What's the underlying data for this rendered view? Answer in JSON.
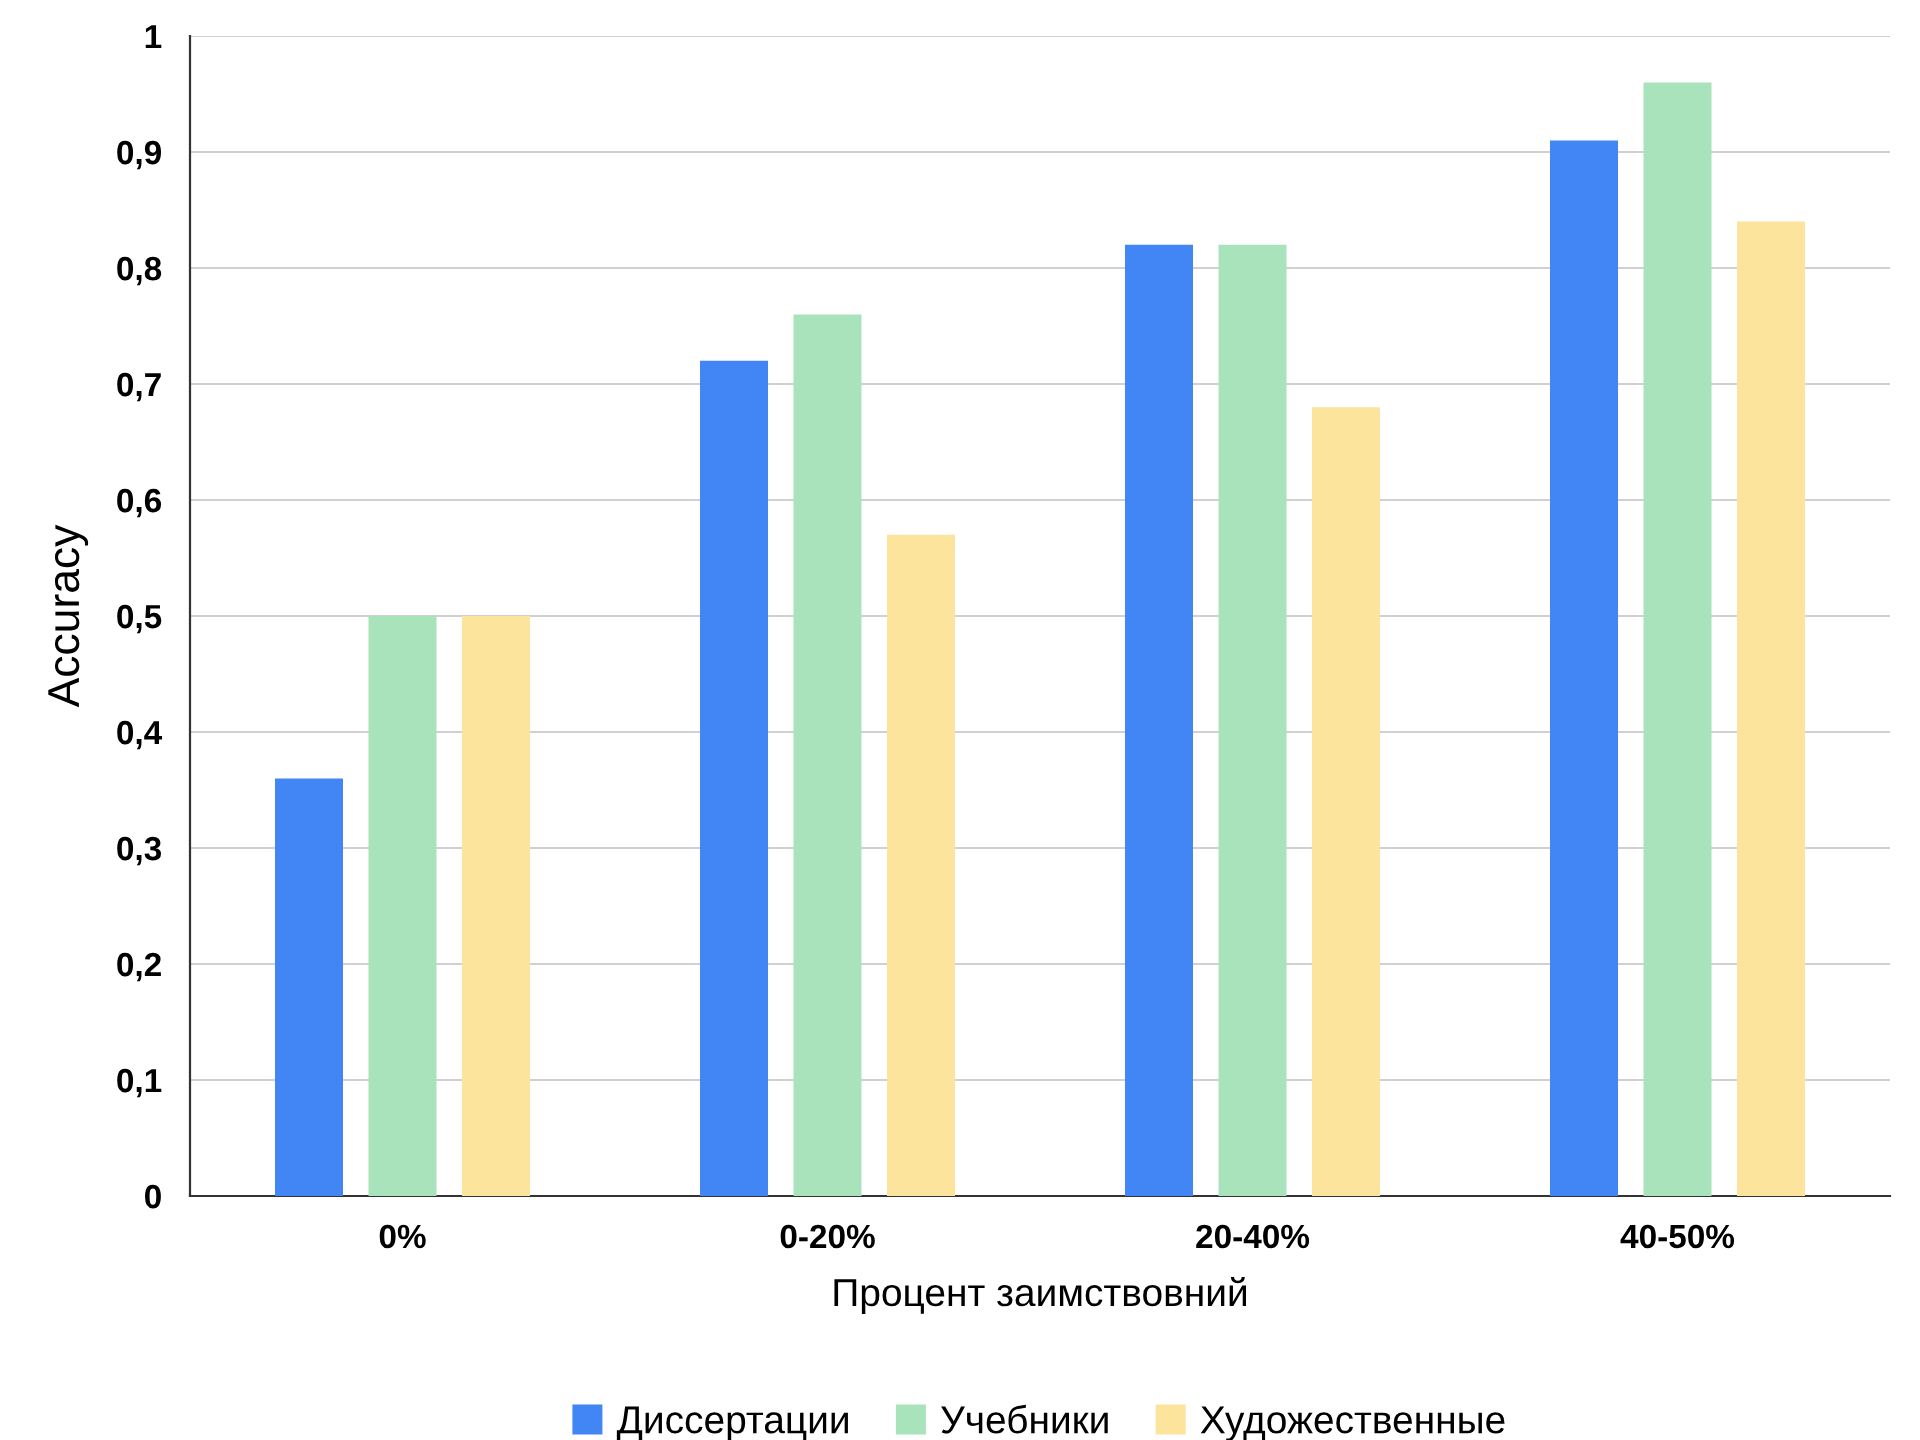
{
  "chart_data": {
    "type": "bar",
    "xlabel": "Процент заимствовний",
    "ylabel": "Accuracy",
    "categories": [
      "0%",
      "0-20%",
      "20-40%",
      "40-50%"
    ],
    "series": [
      {
        "name": "Диссертации",
        "color": "#4285f4",
        "values": [
          0.36,
          0.72,
          0.82,
          0.91
        ]
      },
      {
        "name": "Учебники",
        "color": "#a8e3bb",
        "values": [
          0.5,
          0.76,
          0.82,
          0.96
        ]
      },
      {
        "name": "Художественные",
        "color": "#fce49c",
        "values": [
          0.5,
          0.57,
          0.68,
          0.84
        ]
      }
    ],
    "ylim": [
      0,
      1
    ],
    "yticks": [
      0,
      {
        "value": 0.1,
        "label": "0,1"
      },
      {
        "value": 0.2,
        "label": "0,2"
      },
      {
        "value": 0.3,
        "label": "0,3"
      },
      {
        "value": 0.4,
        "label": "0,4"
      },
      {
        "value": 0.5,
        "label": "0,5"
      },
      {
        "value": 0.6,
        "label": "0,6"
      },
      {
        "value": 0.7,
        "label": "0,7"
      },
      {
        "value": 0.8,
        "label": "0,8"
      },
      {
        "value": 0.9,
        "label": "0,9"
      },
      1
    ],
    "grid": "y",
    "legend": "bottom"
  }
}
